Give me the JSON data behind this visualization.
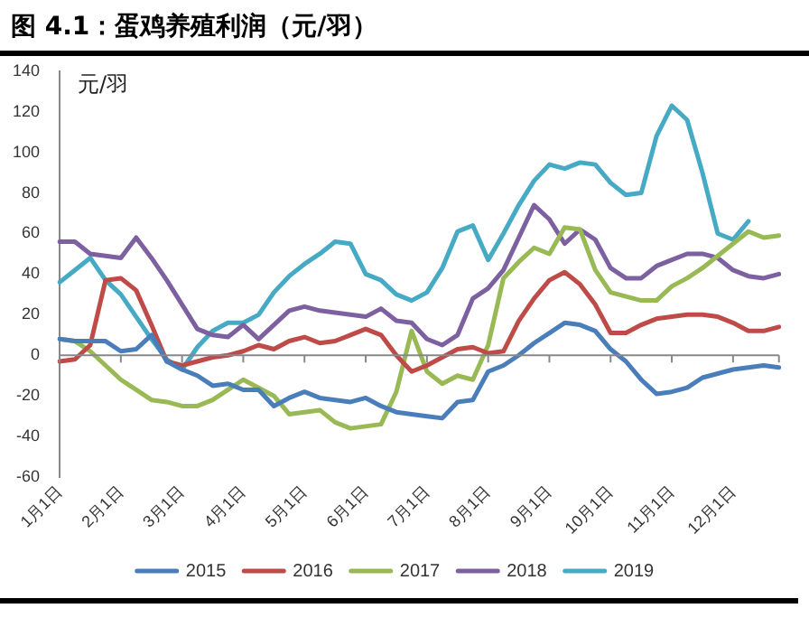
{
  "chart_data": {
    "type": "line",
    "title": "图 4.1：蛋鸡养殖利润（元/羽）",
    "ylabel": "元/羽",
    "categories": [
      "1月1日",
      null,
      null,
      null,
      "2月1日",
      null,
      null,
      null,
      "3月1日",
      null,
      null,
      null,
      "4月1日",
      null,
      null,
      null,
      "5月1日",
      null,
      null,
      null,
      "6月1日",
      null,
      null,
      null,
      "7月1日",
      null,
      null,
      null,
      "8月1日",
      null,
      null,
      null,
      "9月1日",
      null,
      null,
      null,
      "10月1日",
      null,
      null,
      null,
      "11月1日",
      null,
      null,
      null,
      "12月1日",
      null,
      null,
      null
    ],
    "series": [
      {
        "name": "2015",
        "color": "#4a7ebb",
        "values": [
          8,
          7,
          7,
          7,
          2,
          3,
          10,
          -3,
          -7,
          -10,
          -15,
          -14,
          -17,
          -17,
          -25,
          -21,
          -18,
          -21,
          -22,
          -23,
          -21,
          -25,
          -28,
          -29,
          -30,
          -31,
          -23,
          -22,
          -8,
          -5,
          0,
          6,
          11,
          16,
          15,
          12,
          3,
          -3,
          -12,
          -19,
          -18,
          -16,
          -11,
          -9,
          -7,
          -6,
          -5,
          -6
        ]
      },
      {
        "name": "2016",
        "color": "#be4b48",
        "values": [
          -3,
          -2,
          5,
          37,
          38,
          32,
          15,
          -3,
          -5,
          -3,
          -1,
          0,
          2,
          5,
          3,
          7,
          9,
          6,
          7,
          10,
          13,
          10,
          0,
          -8,
          -5,
          -1,
          3,
          4,
          1,
          2,
          17,
          28,
          37,
          41,
          35,
          25,
          11,
          11,
          15,
          18,
          19,
          20,
          20,
          19,
          16,
          12,
          12,
          14
        ]
      },
      {
        "name": "2017",
        "color": "#98b954",
        "values": [
          8,
          7,
          2,
          -5,
          -12,
          -17,
          -22,
          -23,
          -25,
          -25,
          -22,
          -17,
          -12,
          -16,
          -20,
          -29,
          -28,
          -27,
          -33,
          -36,
          -35,
          -34,
          -18,
          12,
          -8,
          -14,
          -10,
          -12,
          5,
          38,
          46,
          53,
          50,
          63,
          62,
          42,
          31,
          29,
          27,
          27,
          34,
          38,
          43,
          49,
          55,
          61,
          58,
          59
        ]
      },
      {
        "name": "2018",
        "color": "#7d60a0",
        "values": [
          56,
          56,
          50,
          49,
          48,
          58,
          48,
          37,
          25,
          13,
          10,
          9,
          15,
          8,
          15,
          22,
          24,
          22,
          21,
          20,
          19,
          23,
          17,
          16,
          8,
          5,
          10,
          28,
          33,
          42,
          58,
          74,
          67,
          55,
          62,
          57,
          43,
          38,
          38,
          44,
          47,
          50,
          50,
          48,
          42,
          39,
          38,
          40
        ]
      },
      {
        "name": "2019",
        "color": "#46aac5",
        "values": [
          36,
          42,
          48,
          37,
          30,
          19,
          8,
          -2,
          -7,
          4,
          12,
          16,
          16,
          20,
          31,
          39,
          45,
          50,
          56,
          55,
          40,
          37,
          30,
          27,
          31,
          43,
          61,
          64,
          47,
          60,
          74,
          86,
          94,
          92,
          95,
          94,
          85,
          79,
          80,
          108,
          123,
          116,
          90,
          60,
          57,
          66,
          null,
          null
        ]
      }
    ],
    "ylim": [
      -60,
      140
    ],
    "yticks": [
      -60,
      -40,
      -20,
      0,
      20,
      40,
      60,
      80,
      100,
      120,
      140
    ],
    "ref_lines": [
      {
        "axis": "y",
        "value": 0,
        "color": "#888888",
        "line_style": "solid"
      }
    ],
    "grid": false,
    "legend": "bottom",
    "marker": "none",
    "line_style": "solid"
  }
}
